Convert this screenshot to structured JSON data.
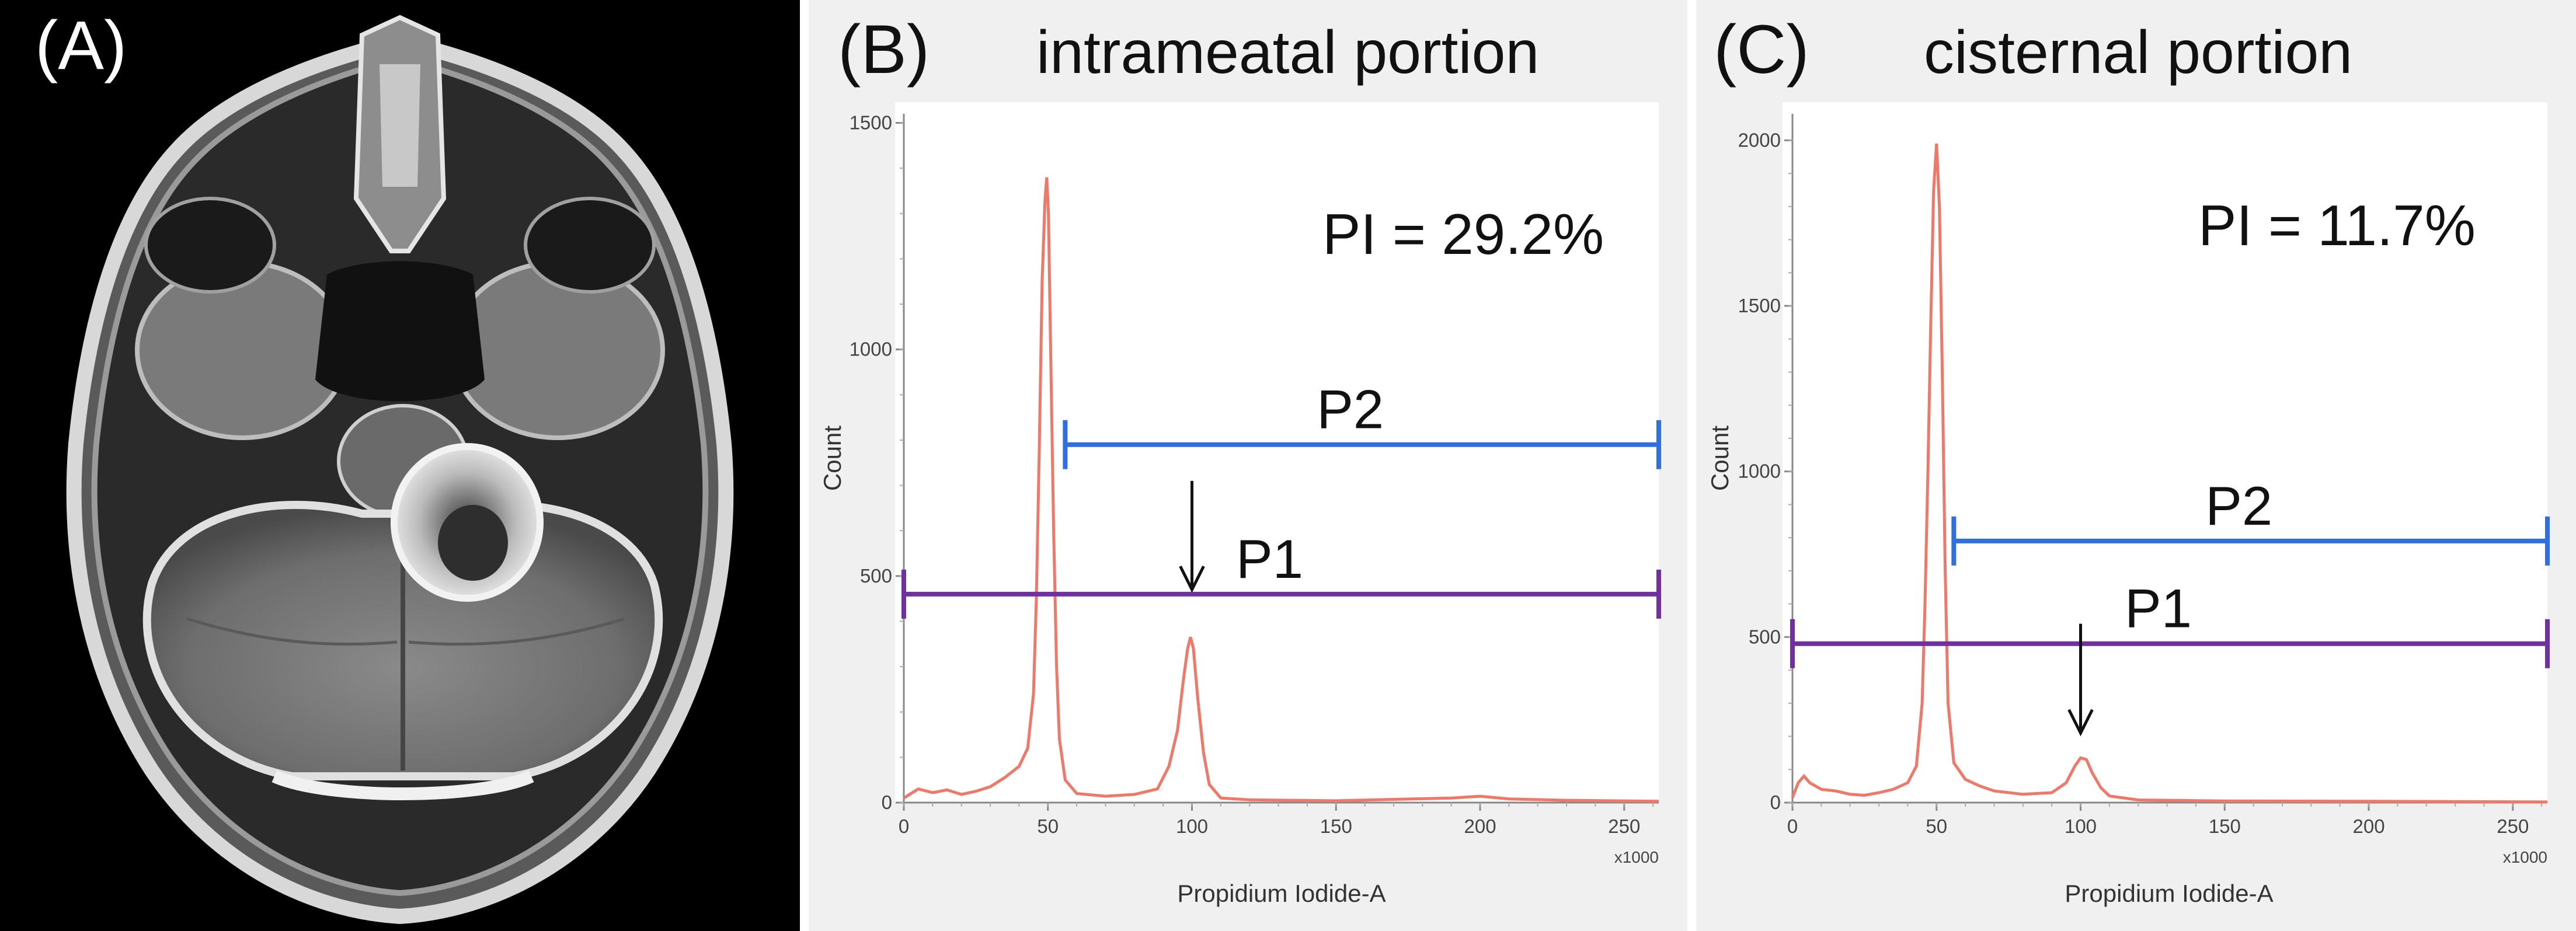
{
  "panel_a": {
    "letter": "(A)"
  },
  "chart_data": [
    {
      "type": "histogram",
      "panel": "(B)",
      "title": "intrameatal portion",
      "xlabel": "Propidium Iodide-A",
      "ylabel": "Count",
      "x_unit": "x1000",
      "xlim": [
        0,
        262
      ],
      "ylim": [
        0,
        1520
      ],
      "x_ticks": [
        0,
        50,
        100,
        150,
        200,
        250
      ],
      "y_ticks": [
        0,
        500,
        1000,
        1500
      ],
      "curve": [
        [
          0,
          10
        ],
        [
          5,
          30
        ],
        [
          10,
          22
        ],
        [
          15,
          28
        ],
        [
          20,
          18
        ],
        [
          25,
          25
        ],
        [
          30,
          35
        ],
        [
          35,
          55
        ],
        [
          40,
          80
        ],
        [
          43,
          120
        ],
        [
          45,
          240
        ],
        [
          46,
          450
        ],
        [
          47,
          780
        ],
        [
          48,
          1150
        ],
        [
          49,
          1330
        ],
        [
          49.6,
          1380
        ],
        [
          50.2,
          1300
        ],
        [
          51,
          980
        ],
        [
          52,
          600
        ],
        [
          53,
          300
        ],
        [
          54,
          140
        ],
        [
          56,
          50
        ],
        [
          60,
          20
        ],
        [
          70,
          14
        ],
        [
          80,
          18
        ],
        [
          88,
          30
        ],
        [
          92,
          80
        ],
        [
          95,
          160
        ],
        [
          97,
          270
        ],
        [
          98.5,
          340
        ],
        [
          99.5,
          365
        ],
        [
          100.5,
          340
        ],
        [
          102,
          230
        ],
        [
          104,
          110
        ],
        [
          106,
          40
        ],
        [
          110,
          10
        ],
        [
          120,
          6
        ],
        [
          150,
          4
        ],
        [
          190,
          10
        ],
        [
          200,
          14
        ],
        [
          210,
          8
        ],
        [
          230,
          5
        ],
        [
          262,
          3
        ]
      ],
      "gates": [
        {
          "name": "P2",
          "start": 56,
          "end": 262,
          "level": 790,
          "color": "#2f6fe0"
        },
        {
          "name": "P1",
          "start": 0,
          "end": 262,
          "level": 460,
          "color": "#7030a0"
        }
      ],
      "arrow": {
        "x": 100,
        "from": 710,
        "to": 470
      },
      "annotation": "PI = 29.2%"
    },
    {
      "type": "histogram",
      "panel": "(C)",
      "title": "cisternal portion",
      "xlabel": "Propidium Iodide-A",
      "ylabel": "Count",
      "x_unit": "x1000",
      "xlim": [
        0,
        262
      ],
      "ylim": [
        0,
        2080
      ],
      "x_ticks": [
        0,
        50,
        100,
        150,
        200,
        250
      ],
      "y_ticks": [
        0,
        500,
        1000,
        1500,
        2000
      ],
      "curve": [
        [
          0,
          15
        ],
        [
          2,
          60
        ],
        [
          4,
          80
        ],
        [
          6,
          60
        ],
        [
          10,
          40
        ],
        [
          15,
          35
        ],
        [
          20,
          25
        ],
        [
          25,
          22
        ],
        [
          30,
          30
        ],
        [
          35,
          40
        ],
        [
          40,
          60
        ],
        [
          43,
          110
        ],
        [
          45,
          300
        ],
        [
          46,
          600
        ],
        [
          47,
          1000
        ],
        [
          48,
          1450
        ],
        [
          49,
          1850
        ],
        [
          50,
          1990
        ],
        [
          51,
          1800
        ],
        [
          52,
          1300
        ],
        [
          53,
          700
        ],
        [
          54,
          300
        ],
        [
          56,
          120
        ],
        [
          60,
          70
        ],
        [
          65,
          50
        ],
        [
          70,
          35
        ],
        [
          80,
          25
        ],
        [
          90,
          30
        ],
        [
          95,
          60
        ],
        [
          98,
          110
        ],
        [
          100,
          135
        ],
        [
          102,
          130
        ],
        [
          104,
          90
        ],
        [
          107,
          45
        ],
        [
          110,
          20
        ],
        [
          120,
          8
        ],
        [
          150,
          5
        ],
        [
          200,
          4
        ],
        [
          262,
          2
        ]
      ],
      "gates": [
        {
          "name": "P2",
          "start": 56,
          "end": 262,
          "level": 790,
          "color": "#2f6fe0"
        },
        {
          "name": "P1",
          "start": 0,
          "end": 262,
          "level": 480,
          "color": "#7030a0"
        }
      ],
      "arrow": {
        "x": 100,
        "from": 540,
        "to": 210
      },
      "annotation": "PI = 11.7%"
    }
  ]
}
